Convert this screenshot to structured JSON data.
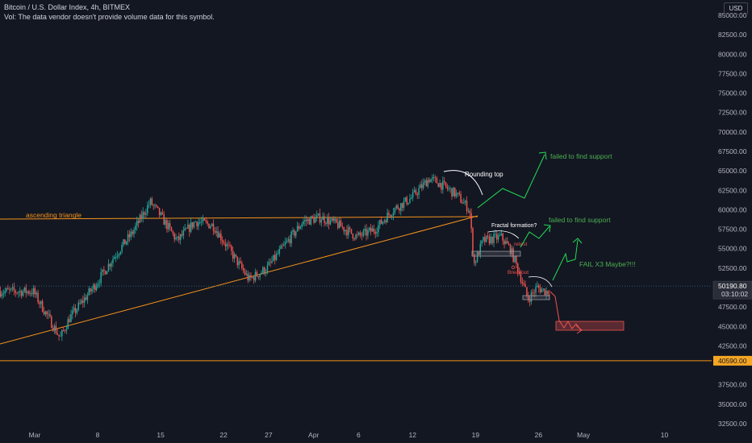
{
  "header": {
    "title": "Bitcoin / U.S. Dollar Index, 4h, BITMEX",
    "vol_note": "Vol: The data vendor doesn't provide volume data for this symbol.",
    "currency_button": "USD"
  },
  "colors": {
    "background": "#131722",
    "up_candle": "#26a69a",
    "down_candle": "#ef5350",
    "trendline": "#f7931a",
    "projection_up": "#22dd55",
    "projection_down": "#ef5350",
    "annotation_green": "#4caf50",
    "current_price_label": "#2a2e39",
    "support_label": "#f5a623"
  },
  "chart_data": {
    "type": "candlestick",
    "symbol": "Bitcoin / U.S. Dollar Index",
    "interval": "4h",
    "exchange": "BITMEX",
    "y_axis": {
      "range": [
        32500,
        85000
      ],
      "ticks": [
        85000,
        82500,
        80000,
        77500,
        75000,
        72500,
        70000,
        67500,
        65000,
        62500,
        60000,
        57500,
        55000,
        52500,
        47500,
        45000,
        42500,
        37500,
        35000,
        32500
      ],
      "tick_labels": [
        "85000.00",
        "82500.00",
        "80000.00",
        "77500.00",
        "75000.00",
        "72500.00",
        "70000.00",
        "67500.00",
        "65000.00",
        "62500.00",
        "60000.00",
        "57500.00",
        "55000.00",
        "52500.00",
        "47500.00",
        "45000.00",
        "42500.00",
        "37500.00",
        "35000.00",
        "32500.00"
      ]
    },
    "x_axis": {
      "tick_labels": [
        "Mar",
        "8",
        "15",
        "22",
        "27",
        "Apr",
        "6",
        "12",
        "19",
        "26",
        "May",
        "10"
      ],
      "tick_days": [
        0,
        7,
        14,
        21,
        26,
        31,
        36,
        42,
        49,
        56,
        61,
        70
      ]
    },
    "price_path": [
      {
        "day": 0,
        "price": 49500
      },
      {
        "day": 1,
        "price": 47500
      },
      {
        "day": 2,
        "price": 45500
      },
      {
        "day": 3,
        "price": 43500
      },
      {
        "day": 4,
        "price": 46000
      },
      {
        "day": 6,
        "price": 49000
      },
      {
        "day": 7,
        "price": 50500
      },
      {
        "day": 9,
        "price": 54000
      },
      {
        "day": 11,
        "price": 57000
      },
      {
        "day": 13,
        "price": 61000
      },
      {
        "day": 14,
        "price": 59500
      },
      {
        "day": 16,
        "price": 56000
      },
      {
        "day": 18,
        "price": 58500
      },
      {
        "day": 20,
        "price": 58000
      },
      {
        "day": 22,
        "price": 54500
      },
      {
        "day": 24,
        "price": 51000
      },
      {
        "day": 26,
        "price": 52500
      },
      {
        "day": 28,
        "price": 55500
      },
      {
        "day": 30,
        "price": 58500
      },
      {
        "day": 32,
        "price": 59000
      },
      {
        "day": 34,
        "price": 58000
      },
      {
        "day": 36,
        "price": 56500
      },
      {
        "day": 38,
        "price": 57500
      },
      {
        "day": 40,
        "price": 60000
      },
      {
        "day": 42,
        "price": 61500
      },
      {
        "day": 44,
        "price": 64000
      },
      {
        "day": 45,
        "price": 63500
      },
      {
        "day": 47,
        "price": 62000
      },
      {
        "day": 48.5,
        "price": 60000
      },
      {
        "day": 49,
        "price": 53000
      },
      {
        "day": 50,
        "price": 56000
      },
      {
        "day": 52,
        "price": 56500
      },
      {
        "day": 53,
        "price": 55000
      },
      {
        "day": 54,
        "price": 52000
      },
      {
        "day": 55,
        "price": 48500
      },
      {
        "day": 56,
        "price": 50000
      },
      {
        "day": 57,
        "price": 49500
      }
    ],
    "current_price": {
      "price": 50190.8,
      "label": "50190.80",
      "countdown": "03:10:02"
    },
    "support_line": {
      "price": 40590.0,
      "label": "40590.00"
    },
    "annotations": [
      {
        "id": "ascending_triangle",
        "text": "ascending triangle"
      },
      {
        "id": "rounding_top",
        "text": "Rounding top"
      },
      {
        "id": "fractal",
        "text": "Fractal formation?"
      },
      {
        "id": "retest",
        "text": "retest"
      },
      {
        "id": "breakout",
        "text": "Breakout"
      },
      {
        "id": "fail1",
        "text": "failed to find support"
      },
      {
        "id": "fail2",
        "text": "failed to find support"
      },
      {
        "id": "fail3",
        "text": "FAIL X3 Maybe?!!!"
      }
    ],
    "grid": false
  }
}
